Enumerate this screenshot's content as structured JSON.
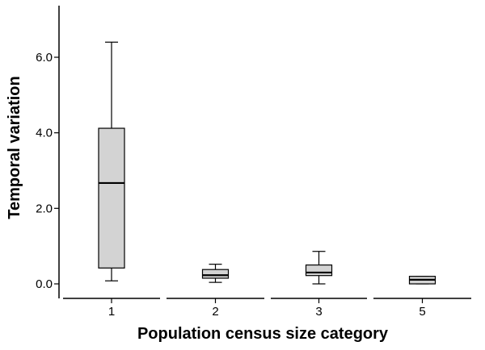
{
  "chart_data": {
    "type": "box",
    "xlabel": "Population census size category",
    "ylabel": "Temporal variation",
    "categories": [
      "1",
      "2",
      "3",
      "5"
    ],
    "ylim": [
      -0.45,
      7.3
    ],
    "yticks": [
      0.0,
      2.0,
      4.0,
      6.0
    ],
    "ytick_labels": [
      "0.0",
      "2.0",
      "4.0",
      "6.0"
    ],
    "boxes": [
      {
        "category": "1",
        "whisker_low": 0.08,
        "q1": 0.42,
        "median": 2.67,
        "q3": 4.12,
        "whisker_high": 6.4
      },
      {
        "category": "2",
        "whisker_low": 0.04,
        "q1": 0.15,
        "median": 0.23,
        "q3": 0.38,
        "whisker_high": 0.52
      },
      {
        "category": "3",
        "whisker_low": 0.0,
        "q1": 0.22,
        "median": 0.3,
        "q3": 0.5,
        "whisker_high": 0.86
      },
      {
        "category": "5",
        "whisker_low": 0.0,
        "q1": 0.0,
        "median": 0.11,
        "q3": 0.2,
        "whisker_high": 0.2
      }
    ],
    "box_fill": "#d3d3d3",
    "box_stroke": "#000000",
    "grid": false,
    "legend": "none"
  }
}
